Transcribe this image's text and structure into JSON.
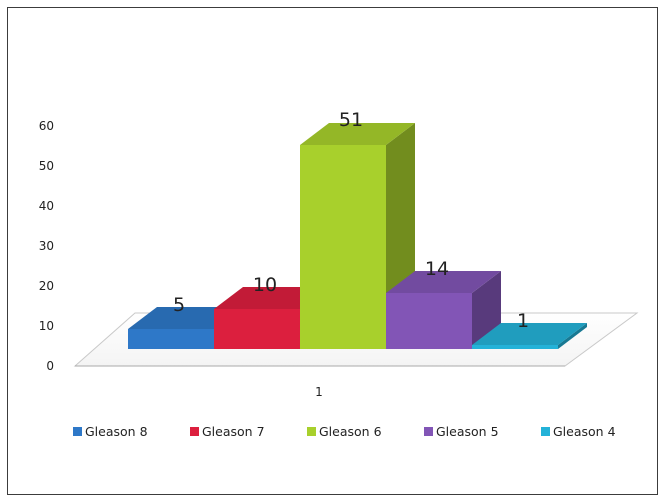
{
  "chart_data": {
    "type": "bar",
    "subtype": "3d-column-side-by-side",
    "title": "",
    "xlabel": "",
    "ylabel": "",
    "categories": [
      "1"
    ],
    "series": [
      {
        "name": "Gleason 8",
        "values": [
          5
        ],
        "color": "#2e78c8",
        "label": "5"
      },
      {
        "name": "Gleason 7",
        "values": [
          10
        ],
        "color": "#dc1f3e",
        "label": "10"
      },
      {
        "name": "Gleason 6",
        "values": [
          51
        ],
        "color": "#a8d02c",
        "label": "51"
      },
      {
        "name": "Gleason 5",
        "values": [
          14
        ],
        "color": "#8255b6",
        "label": "14"
      },
      {
        "name": "Gleason 4",
        "values": [
          1
        ],
        "color": "#24b2d8",
        "label": "1"
      }
    ],
    "ylim": [
      0,
      60
    ],
    "y_ticks": [
      "0",
      "10",
      "20",
      "30",
      "40",
      "50",
      "60"
    ],
    "grid": false,
    "legend_position": "bottom"
  }
}
